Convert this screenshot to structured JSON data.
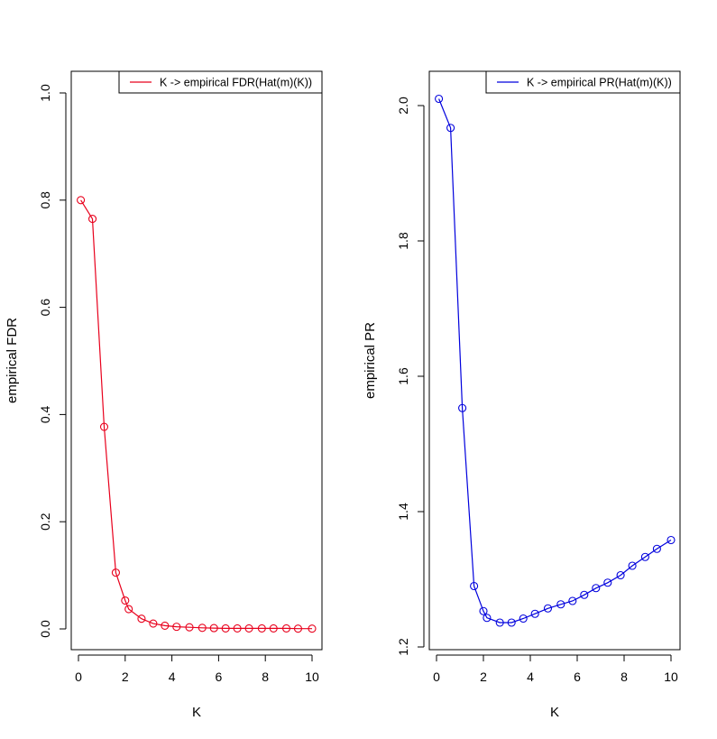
{
  "chart_data": [
    {
      "type": "line",
      "xlabel": "K",
      "ylabel": "empirical FDR",
      "xlim": [
        0,
        10
      ],
      "ylim": [
        0,
        1.0
      ],
      "x_ticks": [
        "0",
        "2",
        "4",
        "6",
        "8",
        "10"
      ],
      "y_ticks": [
        "0.0",
        "0.2",
        "0.4",
        "0.6",
        "0.8",
        "1.0"
      ],
      "legend_position": "top-right",
      "grid": false,
      "series": [
        {
          "name": "K -> empirical FDR(Hat(m)(K))",
          "color": "#e8001c",
          "marker": "open-circle",
          "x": [
            0.1,
            0.6,
            1.1,
            1.6,
            2.0,
            2.15,
            2.7,
            3.2,
            3.7,
            4.2,
            4.75,
            5.3,
            5.8,
            6.3,
            6.8,
            7.3,
            7.85,
            8.35,
            8.9,
            9.4,
            10.0
          ],
          "y": [
            0.8,
            0.765,
            0.377,
            0.105,
            0.053,
            0.037,
            0.019,
            0.01,
            0.006,
            0.004,
            0.003,
            0.002,
            0.0015,
            0.001,
            0.001,
            0.001,
            0.001,
            0.001,
            0.001,
            0.0005,
            0.0005
          ]
        }
      ]
    },
    {
      "type": "line",
      "xlabel": "K",
      "ylabel": "empirical PR",
      "xlim": [
        0,
        10
      ],
      "ylim": [
        1.2,
        2.0
      ],
      "x_ticks": [
        "0",
        "2",
        "4",
        "6",
        "8",
        "10"
      ],
      "y_ticks": [
        "1.2",
        "1.4",
        "1.6",
        "1.8",
        "2.0"
      ],
      "legend_position": "top-right",
      "grid": false,
      "series": [
        {
          "name": "K -> empirical PR(Hat(m)(K))",
          "color": "#0000dd",
          "marker": "open-circle",
          "x": [
            0.1,
            0.6,
            1.1,
            1.6,
            2.0,
            2.15,
            2.7,
            3.2,
            3.7,
            4.2,
            4.75,
            5.3,
            5.8,
            6.3,
            6.8,
            7.3,
            7.85,
            8.35,
            8.9,
            9.4,
            10.0
          ],
          "y": [
            2.01,
            1.967,
            1.553,
            1.29,
            1.253,
            1.243,
            1.236,
            1.236,
            1.242,
            1.249,
            1.257,
            1.263,
            1.268,
            1.277,
            1.287,
            1.295,
            1.306,
            1.32,
            1.333,
            1.345,
            1.358
          ]
        }
      ]
    }
  ]
}
